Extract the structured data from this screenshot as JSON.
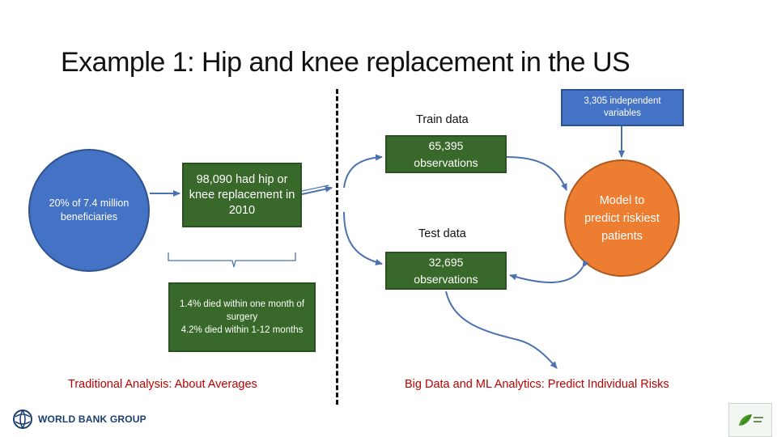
{
  "title": "Example 1: Hip and knee replacement in the US",
  "nodes": {
    "beneficiaries": "20% of 7.4 million beneficiaries",
    "replacement": "98,090 had hip or knee replacement in 2010",
    "died": "1.4% died within one month of surgery\n4.2% died within 1-12 months",
    "train_label": "Train data",
    "train_obs": "65,395 observations",
    "test_label": "Test data",
    "test_obs": "32,695 observations",
    "variables": "3,305 independent variables",
    "model": "Model to predict riskiest patients"
  },
  "captions": {
    "left": "Traditional Analysis: About Averages",
    "right": "Big Data and ML Analytics: Predict Individual Risks"
  },
  "logos": {
    "left_text": "WORLD BANK GROUP",
    "left_icon": "globe-icon",
    "right_icon": "leaf-logo-icon"
  },
  "colors": {
    "blue": "#4472c4",
    "green": "#38692a",
    "orange": "#ed7d31",
    "caption_red": "#c00000",
    "arrow": "#4a72b0"
  }
}
